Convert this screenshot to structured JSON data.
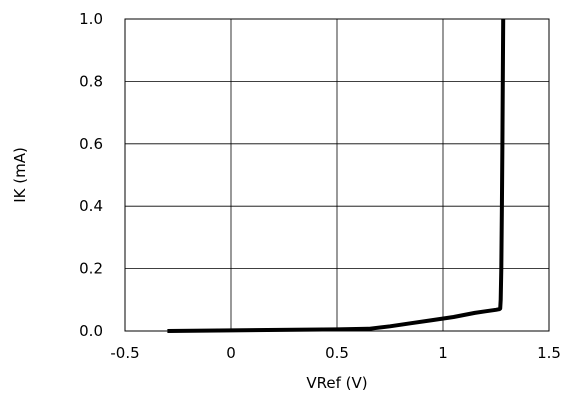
{
  "chart_data": {
    "type": "line",
    "title": "",
    "xlabel": "VRef (V)",
    "ylabel": "IK (mA)",
    "xlim": [
      -0.5,
      1.5
    ],
    "ylim": [
      0.0,
      1.0
    ],
    "x_ticks": [
      -0.5,
      0,
      0.5,
      1,
      1.5
    ],
    "x_tick_labels": [
      "-0.5",
      "0",
      "0.5",
      "1",
      "1.5"
    ],
    "y_ticks": [
      0.0,
      0.2,
      0.4,
      0.6,
      0.8,
      1.0
    ],
    "y_tick_labels": [
      "0.0",
      "0.2",
      "0.4",
      "0.6",
      "0.8",
      "1.0"
    ],
    "grid": true,
    "legend": false,
    "series": [
      {
        "color": "#000000",
        "x": [
          -0.3,
          0.0,
          0.3,
          0.5,
          0.65,
          0.75,
          0.85,
          0.95,
          1.05,
          1.15,
          1.2,
          1.25,
          1.265,
          1.27,
          1.272,
          1.275,
          1.278,
          1.28,
          1.282,
          1.284
        ],
        "y": [
          0.0,
          0.002,
          0.004,
          0.005,
          0.007,
          0.015,
          0.025,
          0.035,
          0.045,
          0.058,
          0.063,
          0.068,
          0.07,
          0.072,
          0.1,
          0.2,
          0.4,
          0.6,
          0.8,
          1.0
        ]
      }
    ]
  }
}
